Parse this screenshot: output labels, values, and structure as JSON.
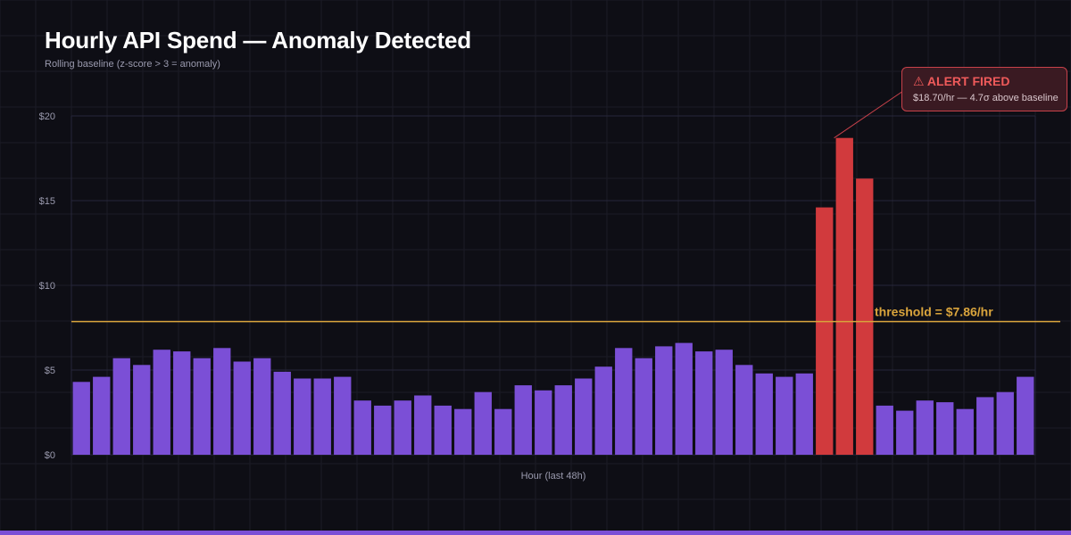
{
  "header": {
    "title": "Hourly API Spend — Anomaly Detected",
    "subtitle": "Rolling baseline (z-score > 3 = anomaly)"
  },
  "alert": {
    "icon": "warning-icon",
    "title": "⚠ ALERT FIRED",
    "detail": "$18.70/hr — 4.7σ above baseline"
  },
  "colors": {
    "background": "#0e0e15",
    "normal_bar": "#7b4fd6",
    "anomaly_bar": "#d13a3d",
    "threshold": "#d9a43c",
    "alert_border": "#c7414a",
    "bottom_accent": "#7b4fd6"
  },
  "chart_data": {
    "type": "bar",
    "title": "Hourly API Spend — Anomaly Detected",
    "xlabel": "Hour (last 48h)",
    "ylabel": "",
    "ylim": [
      0,
      20
    ],
    "yticks": [
      0,
      5,
      10,
      15,
      20
    ],
    "ytick_labels": [
      "$0",
      "$5",
      "$10",
      "$15",
      "$20"
    ],
    "grid": true,
    "values": [
      4.3,
      4.6,
      5.7,
      5.3,
      6.2,
      6.1,
      5.7,
      6.3,
      5.5,
      5.7,
      4.9,
      4.5,
      4.5,
      4.6,
      3.2,
      2.9,
      3.2,
      3.5,
      2.9,
      2.7,
      3.7,
      2.7,
      4.1,
      3.8,
      4.1,
      4.5,
      5.2,
      6.3,
      5.7,
      6.4,
      6.6,
      6.1,
      6.2,
      5.3,
      4.8,
      4.6,
      4.8,
      14.6,
      18.7,
      16.3,
      2.9,
      2.6,
      3.2,
      3.1,
      2.7,
      3.4,
      3.7,
      4.6
    ],
    "anomaly_indices": [
      37,
      38,
      39
    ],
    "threshold": {
      "value": 7.86,
      "label": "threshold = $7.86/hr"
    },
    "annotation": {
      "target_index": 38,
      "value": 18.7
    }
  }
}
